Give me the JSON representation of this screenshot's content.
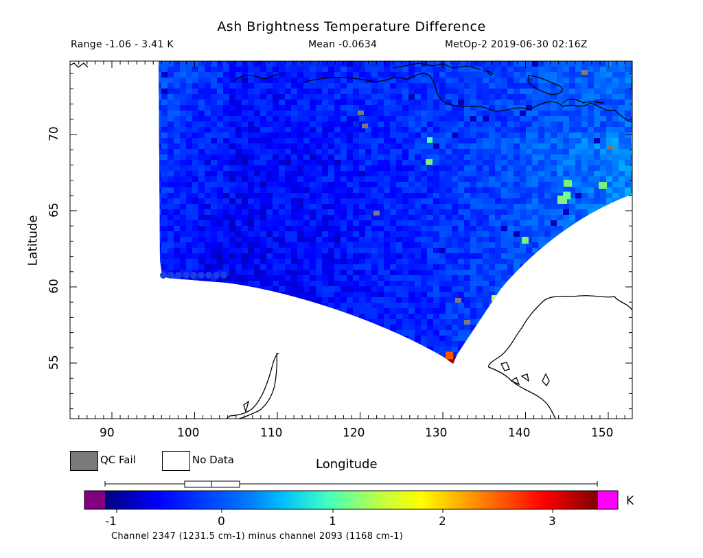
{
  "title": "Ash Brightness Temperature Difference",
  "subtitle": {
    "range": "Range -1.06 - 3.41 K",
    "mean": "Mean -0.0634",
    "satellite_time": "MetOp-2 2019-06-30 02:16Z"
  },
  "axes": {
    "xlabel": "Longitude",
    "ylabel": "Latitude",
    "x_ticks": [
      "90",
      "100",
      "110",
      "120",
      "130",
      "140",
      "150"
    ],
    "y_ticks": [
      "55",
      "60",
      "65",
      "70"
    ]
  },
  "legend": {
    "qc_fail": "QC Fail",
    "no_data": "No Data",
    "qc_fail_color": "#7a7a7a",
    "no_data_color": "#ffffff"
  },
  "colorbar": {
    "unit": "K",
    "ticks": [
      "-1",
      "0",
      "1",
      "2",
      "3"
    ],
    "caption": "Channel 2347 (1231.5 cm-1) minus channel 2093 (1168 cm-1)",
    "under_color": "#800080",
    "over_color": "#ff00ff"
  },
  "chart_data": {
    "type": "heatmap",
    "title": "Ash Brightness Temperature Difference",
    "xlabel": "Longitude",
    "ylabel": "Latitude",
    "xlim": [
      85,
      153
    ],
    "ylim": [
      51,
      74.5
    ],
    "value_range": [
      -1.06,
      3.41
    ],
    "mean": -0.0634,
    "unit": "K",
    "colorbar_range": [
      -1.2,
      3.5
    ],
    "swath_extent": {
      "lon_min": 96,
      "lon_max": 153,
      "lat_min": 55,
      "lat_max": 74.5
    },
    "notable_values": [
      {
        "lon": 131.2,
        "lat": 55.1,
        "value": 3.41
      },
      {
        "lon": 130.8,
        "lat": 55.5,
        "value": 2.6
      },
      {
        "lon": 145,
        "lat": 66,
        "value": 1.1
      },
      {
        "lon": 136.5,
        "lat": 58.6,
        "value": 1.3
      }
    ]
  }
}
